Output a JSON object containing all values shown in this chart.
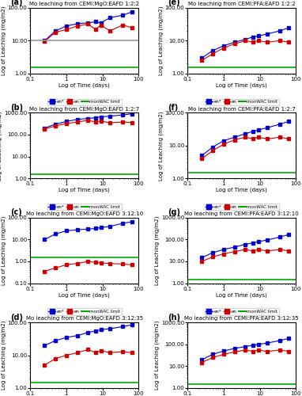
{
  "panels": [
    {
      "label": "(a)",
      "title": "Mo leaching from CEMI:MgO:EAFD 1:2:2",
      "en_star": [
        0.25,
        0.5,
        1,
        2,
        4,
        6.4,
        9,
        16,
        36,
        64
      ],
      "en_star_vals": [
        10.0,
        20.0,
        28.0,
        33.0,
        35.0,
        38.0,
        35.0,
        50.0,
        60.0,
        75.0
      ],
      "en": [
        0.25,
        0.5,
        1,
        2,
        4,
        6.4,
        9,
        16,
        36,
        64
      ],
      "en_vals": [
        9.5,
        18.0,
        22.0,
        28.0,
        32.0,
        22.0,
        30.0,
        20.0,
        30.0,
        25.0
      ],
      "monWAC": 1.5,
      "ylim": [
        1.0,
        100.0
      ],
      "yticks": [
        1.0,
        10.0,
        100.0
      ],
      "yticklabels": [
        "1.00",
        "10.00",
        "100.00"
      ],
      "gray_line": 10.0
    },
    {
      "label": "(b)",
      "title": "Mo leaching from CEMI:MgO:EAFD 1:2:7",
      "en_star": [
        0.25,
        0.5,
        1,
        2,
        4,
        6.4,
        9,
        16,
        36,
        64
      ],
      "en_star_vals": [
        200.0,
        300.0,
        400.0,
        500.0,
        550.0,
        600.0,
        650.0,
        700.0,
        800.0,
        900.0
      ],
      "en": [
        0.25,
        0.5,
        1,
        2,
        4,
        6.4,
        9,
        16,
        36,
        64
      ],
      "en_vals": [
        180.0,
        250.0,
        320.0,
        380.0,
        450.0,
        380.0,
        420.0,
        350.0,
        380.0,
        360.0
      ],
      "monWAC": 1.5,
      "ylim": [
        1.0,
        1000.0
      ],
      "yticks": [
        1.0,
        10.0,
        100.0,
        1000.0
      ],
      "yticklabels": [
        "1.00",
        "10.00",
        "100.00",
        "1000.00"
      ],
      "gray_line": null
    },
    {
      "label": "(c)",
      "title": "Mo leaching from CEMI:MgO:EAFD 3:12:10",
      "en_star": [
        0.25,
        0.5,
        1,
        2,
        4,
        6.4,
        9,
        16,
        36,
        64
      ],
      "en_star_vals": [
        10.0,
        18.0,
        25.0,
        28.0,
        30.0,
        32.0,
        35.0,
        40.0,
        55.0,
        65.0
      ],
      "en": [
        0.25,
        0.5,
        1,
        2,
        4,
        6.4,
        9,
        16,
        36,
        64
      ],
      "en_vals": [
        0.35,
        0.5,
        0.7,
        0.8,
        1.0,
        0.9,
        0.85,
        0.8,
        0.75,
        0.7
      ],
      "monWAC": 1.5,
      "ylim": [
        0.1,
        100.0
      ],
      "yticks": [
        0.1,
        1.0,
        10.0,
        100.0
      ],
      "yticklabels": [
        "0.10",
        "1.00",
        "10.00",
        "100.00"
      ],
      "gray_line": null
    },
    {
      "label": "(d)",
      "title": "Mo leaching from CEMI:MgO:EAFD 3:12:35",
      "en_star": [
        0.25,
        0.5,
        1,
        2,
        4,
        6.4,
        9,
        16,
        36,
        64
      ],
      "en_star_vals": [
        20.0,
        28.0,
        35.0,
        40.0,
        50.0,
        55.0,
        60.0,
        65.0,
        75.0,
        85.0
      ],
      "en": [
        0.25,
        0.5,
        1,
        2,
        4,
        6.4,
        9,
        16,
        36,
        64
      ],
      "en_vals": [
        5.0,
        8.0,
        10.0,
        12.0,
        15.0,
        12.0,
        14.0,
        12.0,
        13.0,
        12.0
      ],
      "monWAC": 1.5,
      "ylim": [
        1.0,
        100.0
      ],
      "yticks": [
        1.0,
        10.0,
        100.0
      ],
      "yticklabels": [
        "1.00",
        "10.00",
        "100.00"
      ],
      "gray_line": null
    },
    {
      "label": "(e)",
      "title": "Mo leaching from CEMI:PFA:EAFD 1:2:2",
      "en_star": [
        0.25,
        0.5,
        1,
        2,
        4,
        6.4,
        9,
        16,
        36,
        64
      ],
      "en_star_vals": [
        3.0,
        5.0,
        7.0,
        9.0,
        11.0,
        13.0,
        14.0,
        16.0,
        20.0,
        25.0
      ],
      "en": [
        0.25,
        0.5,
        1,
        2,
        4,
        6.4,
        9,
        16,
        36,
        64
      ],
      "en_vals": [
        2.5,
        4.0,
        6.0,
        8.0,
        10.0,
        9.0,
        10.0,
        9.0,
        10.0,
        9.0
      ],
      "monWAC": 1.5,
      "ylim": [
        1.0,
        100.0
      ],
      "yticks": [
        1.0,
        10.0,
        100.0
      ],
      "yticklabels": [
        "1.00",
        "10.00",
        "100.00"
      ],
      "gray_line": null
    },
    {
      "label": "(f)",
      "title": "Mo leaching from CEMI:PFA:EAFD 1:2:7",
      "en_star": [
        0.25,
        0.5,
        1,
        2,
        4,
        6.4,
        9,
        16,
        36,
        64
      ],
      "en_star_vals": [
        5.0,
        9.0,
        14.0,
        18.0,
        23.0,
        27.0,
        30.0,
        35.0,
        45.0,
        55.0
      ],
      "en": [
        0.25,
        0.5,
        1,
        2,
        4,
        6.4,
        9,
        16,
        36,
        64
      ],
      "en_vals": [
        4.0,
        7.0,
        11.0,
        15.0,
        18.0,
        16.0,
        18.0,
        16.0,
        18.0,
        16.0
      ],
      "monWAC": 1.5,
      "ylim": [
        1.0,
        100.0
      ],
      "yticks": [
        1.0,
        10.0,
        100.0
      ],
      "yticklabels": [
        "1.00",
        "10.00",
        "100.00"
      ],
      "gray_line": null
    },
    {
      "label": "(g)",
      "title": "Mo leaching from CEMI:PFA:EAFD 3:12:10",
      "en_star": [
        0.25,
        0.5,
        1,
        2,
        4,
        6.4,
        9,
        16,
        36,
        64
      ],
      "en_star_vals": [
        15.0,
        25.0,
        35.0,
        45.0,
        60.0,
        70.0,
        80.0,
        95.0,
        130.0,
        170.0
      ],
      "en": [
        0.25,
        0.5,
        1,
        2,
        4,
        6.4,
        9,
        16,
        36,
        64
      ],
      "en_vals": [
        10.0,
        16.0,
        22.0,
        28.0,
        35.0,
        30.0,
        35.0,
        30.0,
        35.0,
        30.0
      ],
      "monWAC": 1.5,
      "ylim": [
        1.0,
        1000.0
      ],
      "yticks": [
        1.0,
        10.0,
        100.0,
        1000.0
      ],
      "yticklabels": [
        "1.00",
        "10.00",
        "100.00",
        "1000.00"
      ],
      "gray_line": null
    },
    {
      "label": "(h)",
      "title": "Mo leaching from CEMI:PFA:EAFD 3:12:35",
      "en_star": [
        0.25,
        0.5,
        1,
        2,
        4,
        6.4,
        9,
        16,
        36,
        64
      ],
      "en_star_vals": [
        20.0,
        35.0,
        50.0,
        65.0,
        80.0,
        90.0,
        100.0,
        115.0,
        150.0,
        190.0
      ],
      "en": [
        0.25,
        0.5,
        1,
        2,
        4,
        6.4,
        9,
        16,
        36,
        64
      ],
      "en_vals": [
        15.0,
        25.0,
        35.0,
        45.0,
        55.0,
        48.0,
        55.0,
        48.0,
        55.0,
        48.0
      ],
      "monWAC": 1.5,
      "ylim": [
        1.0,
        1000.0
      ],
      "yticks": [
        1.0,
        10.0,
        100.0,
        1000.0
      ],
      "yticklabels": [
        "1.00",
        "10.00",
        "100.00",
        "1000.00"
      ],
      "gray_line": null
    }
  ],
  "color_en_star": "#0000CD",
  "color_en": "#CC0000",
  "color_monWAC": "#00AA00",
  "color_gray": "#999999",
  "xlabel": "Log of Time (days)",
  "ylabel": "Log of Leaching (mg/m2)",
  "xlim": [
    0.1,
    100
  ],
  "xticks": [
    0.1,
    1,
    10,
    100
  ],
  "xticklabels": [
    "0.1",
    "1",
    "10",
    "100"
  ]
}
